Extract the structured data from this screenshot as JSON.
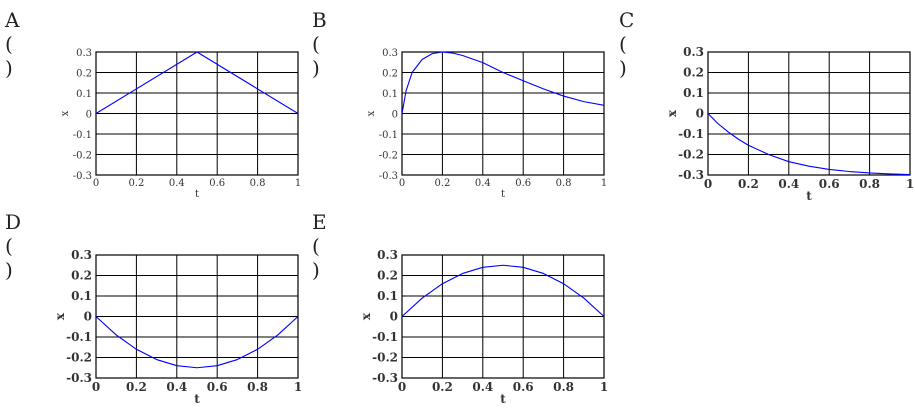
{
  "chart_data": [
    {
      "panel": "A ( )",
      "type": "line",
      "xlabel": "t",
      "ylabel": "x",
      "xlim": [
        0,
        1
      ],
      "ylim": [
        -0.3,
        0.3
      ],
      "xticks": [
        "0",
        "0.2",
        "0.4",
        "0.6",
        "0.8",
        "1"
      ],
      "yticks": [
        "0.3",
        "0.2",
        "0.1",
        "0",
        "-0.1",
        "-0.2",
        "-0.3"
      ],
      "grid": true,
      "bold_ticks": false,
      "color": "#0000ff",
      "series": [
        {
          "x": [
            0,
            0.5,
            1
          ],
          "y": [
            0,
            0.3,
            0
          ]
        }
      ]
    },
    {
      "panel": "B ( )",
      "type": "line",
      "xlabel": "t",
      "ylabel": "x",
      "xlim": [
        0,
        1
      ],
      "ylim": [
        -0.3,
        0.3
      ],
      "xticks": [
        "0",
        "0.2",
        "0.4",
        "0.6",
        "0.8",
        "1"
      ],
      "yticks": [
        "0.3",
        "0.2",
        "0.1",
        "0",
        "-0.1",
        "-0.2",
        "-0.3"
      ],
      "grid": true,
      "bold_ticks": false,
      "color": "#0000ff",
      "series": [
        {
          "x": [
            0,
            0.02,
            0.05,
            0.1,
            0.15,
            0.2,
            0.25,
            0.3,
            0.4,
            0.5,
            0.6,
            0.7,
            0.8,
            0.9,
            1.0
          ],
          "y": [
            0,
            0.11,
            0.2,
            0.264,
            0.292,
            0.3,
            0.295,
            0.283,
            0.248,
            0.2,
            0.16,
            0.12,
            0.085,
            0.058,
            0.04
          ]
        }
      ]
    },
    {
      "panel": "C ( )",
      "type": "line",
      "xlabel": "t",
      "ylabel": "x",
      "xlim": [
        0,
        1
      ],
      "ylim": [
        -0.3,
        0.3
      ],
      "xticks": [
        "0",
        "0.2",
        "0.4",
        "0.6",
        "0.8",
        "1"
      ],
      "yticks": [
        "0.3",
        "0.2",
        "0.1",
        "0",
        "-0.1",
        "-0.2",
        "-0.3"
      ],
      "grid": true,
      "bold_ticks": true,
      "color": "#0000ff",
      "series": [
        {
          "x": [
            0,
            0.05,
            0.1,
            0.15,
            0.2,
            0.3,
            0.4,
            0.5,
            0.6,
            0.7,
            0.8,
            0.9,
            1.0
          ],
          "y": [
            0,
            -0.05,
            -0.09,
            -0.125,
            -0.155,
            -0.2,
            -0.235,
            -0.257,
            -0.273,
            -0.283,
            -0.29,
            -0.295,
            -0.298
          ]
        }
      ]
    },
    {
      "panel": "D ( )",
      "type": "line",
      "xlabel": "t",
      "ylabel": "x",
      "xlim": [
        0,
        1
      ],
      "ylim": [
        -0.3,
        0.3
      ],
      "xticks": [
        "0",
        "0.2",
        "0.4",
        "0.6",
        "0.8",
        "1"
      ],
      "yticks": [
        "0.3",
        "0.2",
        "0.1",
        "0",
        "-0.1",
        "-0.2",
        "-0.3"
      ],
      "grid": true,
      "bold_ticks": true,
      "color": "#0000ff",
      "series": [
        {
          "x": [
            0,
            0.1,
            0.2,
            0.3,
            0.4,
            0.5,
            0.6,
            0.7,
            0.8,
            0.9,
            1.0
          ],
          "y": [
            0,
            -0.09,
            -0.16,
            -0.21,
            -0.24,
            -0.25,
            -0.24,
            -0.21,
            -0.16,
            -0.09,
            0
          ]
        }
      ]
    },
    {
      "panel": "E ( )",
      "type": "line",
      "xlabel": "t",
      "ylabel": "x",
      "xlim": [
        0,
        1
      ],
      "ylim": [
        -0.3,
        0.3
      ],
      "xticks": [
        "0",
        "0.2",
        "0.4",
        "0.6",
        "0.8",
        "1"
      ],
      "yticks": [
        "0.3",
        "0.2",
        "0.1",
        "0",
        "-0.1",
        "-0.2",
        "-0.3"
      ],
      "grid": true,
      "bold_ticks": true,
      "color": "#0000ff",
      "series": [
        {
          "x": [
            0,
            0.1,
            0.2,
            0.3,
            0.4,
            0.5,
            0.6,
            0.7,
            0.8,
            0.9,
            1.0
          ],
          "y": [
            0,
            0.09,
            0.16,
            0.21,
            0.24,
            0.25,
            0.24,
            0.21,
            0.16,
            0.09,
            0
          ]
        }
      ]
    }
  ]
}
